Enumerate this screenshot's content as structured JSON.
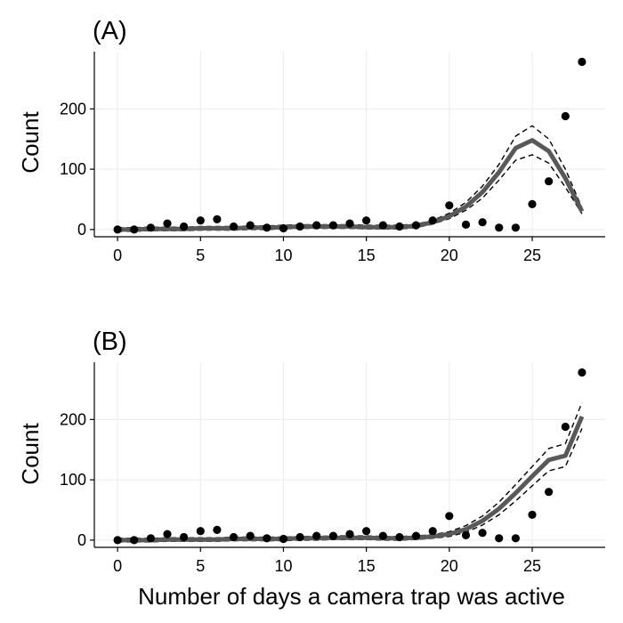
{
  "chart_data": [
    {
      "type": "scatter",
      "panel_label": "(A)",
      "ylabel": "Count",
      "xlabel": "",
      "xlim": [
        -1.4,
        29.4
      ],
      "ylim": [
        -12,
        295
      ],
      "xticks": [
        0,
        5,
        10,
        15,
        20,
        25
      ],
      "yticks": [
        0,
        100,
        200
      ],
      "grid": true,
      "observed": {
        "x": [
          0,
          1,
          2,
          3,
          4,
          5,
          6,
          7,
          8,
          9,
          10,
          11,
          12,
          13,
          14,
          15,
          16,
          17,
          18,
          19,
          20,
          21,
          22,
          23,
          24,
          25,
          26,
          27,
          28
        ],
        "y": [
          0,
          0,
          3,
          10,
          5,
          15,
          17,
          5,
          7,
          3,
          2,
          5,
          7,
          7,
          10,
          15,
          7,
          5,
          7,
          15,
          40,
          8,
          12,
          3,
          3,
          42,
          80,
          188,
          278
        ]
      },
      "fit": {
        "x": [
          0,
          1,
          2,
          3,
          4,
          5,
          6,
          7,
          8,
          9,
          10,
          11,
          12,
          13,
          14,
          15,
          16,
          17,
          18,
          19,
          20,
          21,
          22,
          23,
          24,
          25,
          26,
          27,
          28
        ],
        "y": [
          0,
          0,
          1,
          1,
          1,
          2,
          2,
          2,
          3,
          3,
          4,
          5,
          5,
          5,
          5,
          4,
          4,
          4,
          6,
          12,
          22,
          38,
          62,
          95,
          135,
          148,
          130,
          85,
          30
        ]
      },
      "ci_lower": {
        "x": [
          0,
          1,
          2,
          3,
          4,
          5,
          6,
          7,
          8,
          9,
          10,
          11,
          12,
          13,
          14,
          15,
          16,
          17,
          18,
          19,
          20,
          21,
          22,
          23,
          24,
          25,
          26,
          27,
          28
        ],
        "y": [
          -3,
          -3,
          -2,
          -2,
          -2,
          -1,
          -1,
          -1,
          0,
          0,
          1,
          2,
          2,
          2,
          2,
          1,
          1,
          1,
          3,
          9,
          18,
          32,
          52,
          82,
          115,
          124,
          110,
          70,
          26
        ]
      },
      "ci_upper": {
        "x": [
          0,
          1,
          2,
          3,
          4,
          5,
          6,
          7,
          8,
          9,
          10,
          11,
          12,
          13,
          14,
          15,
          16,
          17,
          18,
          19,
          20,
          21,
          22,
          23,
          24,
          25,
          26,
          27,
          28
        ],
        "y": [
          3,
          3,
          4,
          4,
          4,
          5,
          5,
          5,
          6,
          6,
          7,
          8,
          8,
          8,
          8,
          7,
          7,
          7,
          9,
          15,
          27,
          45,
          72,
          108,
          155,
          172,
          150,
          100,
          36
        ]
      }
    },
    {
      "type": "scatter",
      "panel_label": "(B)",
      "ylabel": "Count",
      "xlabel": "Number of days a camera trap was active",
      "xlim": [
        -1.4,
        29.4
      ],
      "ylim": [
        -12,
        295
      ],
      "xticks": [
        0,
        5,
        10,
        15,
        20,
        25
      ],
      "yticks": [
        0,
        100,
        200
      ],
      "grid": true,
      "observed": {
        "x": [
          0,
          1,
          2,
          3,
          4,
          5,
          6,
          7,
          8,
          9,
          10,
          11,
          12,
          13,
          14,
          15,
          16,
          17,
          18,
          19,
          20,
          21,
          22,
          23,
          24,
          25,
          26,
          27,
          28
        ],
        "y": [
          0,
          0,
          3,
          10,
          5,
          15,
          17,
          5,
          7,
          3,
          2,
          5,
          7,
          7,
          10,
          15,
          7,
          5,
          7,
          15,
          40,
          8,
          12,
          3,
          3,
          42,
          80,
          188,
          278
        ]
      },
      "fit": {
        "x": [
          0,
          1,
          2,
          3,
          4,
          5,
          6,
          7,
          8,
          9,
          10,
          11,
          12,
          13,
          14,
          15,
          16,
          17,
          18,
          19,
          20,
          21,
          22,
          23,
          24,
          25,
          26,
          27,
          28
        ],
        "y": [
          0,
          0,
          0,
          1,
          1,
          1,
          1,
          2,
          2,
          2,
          2,
          3,
          3,
          4,
          4,
          4,
          3,
          3,
          4,
          6,
          10,
          18,
          32,
          52,
          78,
          106,
          133,
          140,
          205
        ]
      },
      "ci_lower": {
        "x": [
          0,
          1,
          2,
          3,
          4,
          5,
          6,
          7,
          8,
          9,
          10,
          11,
          12,
          13,
          14,
          15,
          16,
          17,
          18,
          19,
          20,
          21,
          22,
          23,
          24,
          25,
          26,
          27,
          28
        ],
        "y": [
          -3,
          -3,
          -3,
          -2,
          -2,
          -2,
          -2,
          -1,
          -1,
          -1,
          -1,
          0,
          0,
          1,
          1,
          1,
          0,
          0,
          1,
          3,
          6,
          13,
          25,
          42,
          65,
          90,
          115,
          122,
          185
        ]
      },
      "ci_upper": {
        "x": [
          0,
          1,
          2,
          3,
          4,
          5,
          6,
          7,
          8,
          9,
          10,
          11,
          12,
          13,
          14,
          15,
          16,
          17,
          18,
          19,
          20,
          21,
          22,
          23,
          24,
          25,
          26,
          27,
          28
        ],
        "y": [
          3,
          3,
          3,
          4,
          4,
          4,
          4,
          5,
          5,
          5,
          5,
          6,
          6,
          7,
          7,
          7,
          6,
          6,
          7,
          9,
          14,
          24,
          40,
          63,
          92,
          122,
          152,
          160,
          228
        ]
      }
    }
  ]
}
